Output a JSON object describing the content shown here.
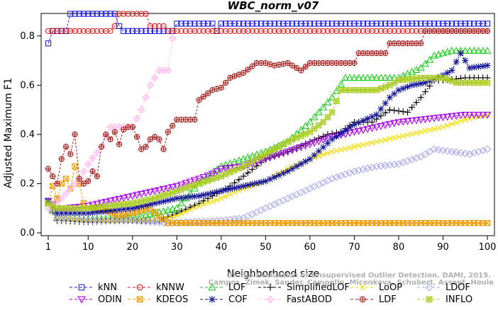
{
  "chart_data": {
    "type": "line",
    "title": "WBC_norm_v07",
    "xlabel": "Neighborhood size",
    "ylabel": "Adjusted Maximum F1",
    "xlim": [
      1,
      100
    ],
    "ylim": [
      0,
      0.88
    ],
    "xticks": [
      1,
      10,
      20,
      30,
      40,
      50,
      60,
      70,
      80,
      90,
      100
    ],
    "yticks": [
      0.0,
      0.2,
      0.4,
      0.6,
      0.8
    ],
    "ytick_labels": [
      "0.0",
      "0.2",
      "0.4",
      "0.6",
      "0.8"
    ],
    "grid": false,
    "legend_position": "bottom",
    "credit_lines": [
      "Campos, Zimek, Sander, Campello, Micenkova, Schubert, Assent, Houle",
      "On the Evaluation of Unsupervised Outlier Detection. DAMI, 2015."
    ],
    "series": [
      {
        "name": "kNN",
        "color": "#2222dd",
        "marker": "square",
        "points": [
          [
            1,
            0.77
          ],
          [
            2,
            0.82
          ],
          [
            5,
            0.82
          ],
          [
            6,
            0.89
          ],
          [
            16,
            0.89
          ],
          [
            17,
            0.84
          ],
          [
            18,
            0.82
          ],
          [
            29,
            0.82
          ],
          [
            30,
            0.85
          ],
          [
            38,
            0.85
          ],
          [
            39,
            0.82
          ],
          [
            40,
            0.85
          ],
          [
            100,
            0.85
          ]
        ]
      },
      {
        "name": "kNNW",
        "color": "#dd2222",
        "marker": "circle",
        "points": [
          [
            1,
            0.82
          ],
          [
            15,
            0.82
          ],
          [
            16,
            0.84
          ],
          [
            17,
            0.89
          ],
          [
            23,
            0.89
          ],
          [
            24,
            0.84
          ],
          [
            27,
            0.84
          ],
          [
            28,
            0.82
          ],
          [
            100,
            0.82
          ]
        ]
      },
      {
        "name": "LOF",
        "color": "#22cc22",
        "marker": "triangle-up",
        "points": [
          [
            1,
            0.12
          ],
          [
            3,
            0.06
          ],
          [
            10,
            0.055
          ],
          [
            20,
            0.06
          ],
          [
            30,
            0.1
          ],
          [
            35,
            0.2
          ],
          [
            40,
            0.27
          ],
          [
            45,
            0.3
          ],
          [
            50,
            0.33
          ],
          [
            55,
            0.37
          ],
          [
            60,
            0.45
          ],
          [
            65,
            0.55
          ],
          [
            68,
            0.63
          ],
          [
            80,
            0.63
          ],
          [
            85,
            0.67
          ],
          [
            88,
            0.72
          ],
          [
            92,
            0.74
          ],
          [
            100,
            0.74
          ]
        ]
      },
      {
        "name": "SimplifiedLOF",
        "color": "#000000",
        "marker": "plus",
        "points": [
          [
            1,
            0.12
          ],
          [
            3,
            0.05
          ],
          [
            10,
            0.045
          ],
          [
            20,
            0.05
          ],
          [
            26,
            0.05
          ],
          [
            30,
            0.08
          ],
          [
            35,
            0.12
          ],
          [
            40,
            0.17
          ],
          [
            42,
            0.19
          ],
          [
            45,
            0.23
          ],
          [
            50,
            0.3
          ],
          [
            55,
            0.33
          ],
          [
            60,
            0.37
          ],
          [
            64,
            0.4
          ],
          [
            67,
            0.41
          ],
          [
            70,
            0.45
          ],
          [
            74,
            0.45
          ],
          [
            78,
            0.5
          ],
          [
            82,
            0.49
          ],
          [
            85,
            0.55
          ],
          [
            88,
            0.62
          ],
          [
            90,
            0.62
          ],
          [
            95,
            0.63
          ],
          [
            100,
            0.63
          ]
        ]
      },
      {
        "name": "LoOP",
        "color": "#f2dd00",
        "marker": "x",
        "points": [
          [
            1,
            0.12
          ],
          [
            3,
            0.06
          ],
          [
            10,
            0.05
          ],
          [
            20,
            0.05
          ],
          [
            26,
            0.05
          ],
          [
            30,
            0.07
          ],
          [
            35,
            0.11
          ],
          [
            40,
            0.14
          ],
          [
            45,
            0.18
          ],
          [
            50,
            0.21
          ],
          [
            55,
            0.26
          ],
          [
            60,
            0.3
          ],
          [
            65,
            0.33
          ],
          [
            70,
            0.35
          ],
          [
            75,
            0.37
          ],
          [
            80,
            0.39
          ],
          [
            85,
            0.41
          ],
          [
            90,
            0.43
          ],
          [
            95,
            0.46
          ],
          [
            100,
            0.48
          ]
        ]
      },
      {
        "name": "LDOF",
        "color": "#aaaaee",
        "marker": "diamond",
        "points": [
          [
            1,
            0.12
          ],
          [
            3,
            0.06
          ],
          [
            10,
            0.05
          ],
          [
            20,
            0.05
          ],
          [
            28,
            0.04
          ],
          [
            40,
            0.05
          ],
          [
            45,
            0.06
          ],
          [
            50,
            0.1
          ],
          [
            55,
            0.14
          ],
          [
            60,
            0.18
          ],
          [
            65,
            0.22
          ],
          [
            70,
            0.25
          ],
          [
            75,
            0.27
          ],
          [
            80,
            0.28
          ],
          [
            85,
            0.31
          ],
          [
            88,
            0.34
          ],
          [
            92,
            0.33
          ],
          [
            96,
            0.32
          ],
          [
            100,
            0.34
          ]
        ]
      },
      {
        "name": "ODIN",
        "color": "#aa00ee",
        "marker": "triangle-down",
        "points": [
          [
            1,
            0.13
          ],
          [
            3,
            0.1
          ],
          [
            5,
            0.1
          ],
          [
            10,
            0.11
          ],
          [
            15,
            0.13
          ],
          [
            20,
            0.15
          ],
          [
            25,
            0.17
          ],
          [
            30,
            0.19
          ],
          [
            35,
            0.22
          ],
          [
            38,
            0.24
          ],
          [
            40,
            0.26
          ],
          [
            45,
            0.27
          ],
          [
            50,
            0.3
          ],
          [
            55,
            0.33
          ],
          [
            60,
            0.36
          ],
          [
            65,
            0.39
          ],
          [
            70,
            0.41
          ],
          [
            75,
            0.43
          ],
          [
            80,
            0.45
          ],
          [
            85,
            0.46
          ],
          [
            90,
            0.47
          ],
          [
            95,
            0.48
          ],
          [
            100,
            0.48
          ]
        ]
      },
      {
        "name": "KDEOS",
        "color": "#ee9900",
        "marker": "square-x",
        "points": [
          [
            1,
            0.12
          ],
          [
            2,
            0.19
          ],
          [
            3,
            0.14
          ],
          [
            4,
            0.2
          ],
          [
            5,
            0.22
          ],
          [
            6,
            0.18
          ],
          [
            7,
            0.27
          ],
          [
            8,
            0.2
          ],
          [
            9,
            0.12
          ],
          [
            10,
            0.1
          ],
          [
            14,
            0.09
          ],
          [
            17,
            0.07
          ],
          [
            20,
            0.08
          ],
          [
            24,
            0.1
          ],
          [
            28,
            0.04
          ],
          [
            40,
            0.04
          ],
          [
            60,
            0.04
          ],
          [
            100,
            0.04
          ]
        ]
      },
      {
        "name": "COF",
        "color": "#111199",
        "marker": "asterisk",
        "points": [
          [
            1,
            0.13
          ],
          [
            3,
            0.08
          ],
          [
            6,
            0.08
          ],
          [
            10,
            0.08
          ],
          [
            15,
            0.09
          ],
          [
            20,
            0.1
          ],
          [
            25,
            0.12
          ],
          [
            30,
            0.14
          ],
          [
            35,
            0.15
          ],
          [
            40,
            0.17
          ],
          [
            45,
            0.19
          ],
          [
            50,
            0.21
          ],
          [
            55,
            0.25
          ],
          [
            60,
            0.3
          ],
          [
            65,
            0.38
          ],
          [
            70,
            0.44
          ],
          [
            75,
            0.48
          ],
          [
            78,
            0.55
          ],
          [
            80,
            0.58
          ],
          [
            83,
            0.6
          ],
          [
            86,
            0.61
          ],
          [
            90,
            0.64
          ],
          [
            92,
            0.66
          ],
          [
            94,
            0.73
          ],
          [
            96,
            0.67
          ],
          [
            100,
            0.68
          ]
        ]
      },
      {
        "name": "FastABOD",
        "color": "#ffbbee",
        "marker": "diamond-plus",
        "points": [
          [
            1,
            0.1
          ],
          [
            3,
            0.12
          ],
          [
            5,
            0.16
          ],
          [
            8,
            0.22
          ],
          [
            10,
            0.28
          ],
          [
            13,
            0.35
          ],
          [
            15,
            0.43
          ],
          [
            20,
            0.43
          ],
          [
            22,
            0.5
          ],
          [
            24,
            0.6
          ],
          [
            26,
            0.66
          ],
          [
            28,
            0.66
          ],
          [
            29,
            0.79
          ]
        ]
      },
      {
        "name": "LDF",
        "color": "#aa2222",
        "marker": "circle-plus",
        "points": [
          [
            1,
            0.26
          ],
          [
            2,
            0.23
          ],
          [
            3,
            0.2
          ],
          [
            4,
            0.3
          ],
          [
            5,
            0.35
          ],
          [
            6,
            0.32
          ],
          [
            7,
            0.4
          ],
          [
            8,
            0.22
          ],
          [
            9,
            0.2
          ],
          [
            10,
            0.21
          ],
          [
            11,
            0.25
          ],
          [
            12,
            0.23
          ],
          [
            13,
            0.35
          ],
          [
            14,
            0.4
          ],
          [
            15,
            0.38
          ],
          [
            16,
            0.41
          ],
          [
            17,
            0.36
          ],
          [
            18,
            0.42
          ],
          [
            19,
            0.43
          ],
          [
            20,
            0.43
          ],
          [
            21,
            0.39
          ],
          [
            22,
            0.34
          ],
          [
            23,
            0.35
          ],
          [
            24,
            0.38
          ],
          [
            25,
            0.39
          ],
          [
            26,
            0.38
          ],
          [
            27,
            0.34
          ],
          [
            28,
            0.41
          ],
          [
            30,
            0.46
          ],
          [
            34,
            0.46
          ],
          [
            35,
            0.54
          ],
          [
            38,
            0.58
          ],
          [
            40,
            0.59
          ],
          [
            42,
            0.63
          ],
          [
            45,
            0.65
          ],
          [
            48,
            0.69
          ],
          [
            50,
            0.69
          ],
          [
            52,
            0.68
          ],
          [
            55,
            0.69
          ],
          [
            58,
            0.66
          ],
          [
            60,
            0.69
          ],
          [
            70,
            0.69
          ],
          [
            71,
            0.73
          ],
          [
            77,
            0.73
          ],
          [
            78,
            0.77
          ],
          [
            85,
            0.77
          ],
          [
            86,
            0.82
          ],
          [
            100,
            0.82
          ]
        ]
      },
      {
        "name": "INFLO",
        "color": "#aacc22",
        "marker": "star-box",
        "points": [
          [
            1,
            0.12
          ],
          [
            3,
            0.1
          ],
          [
            5,
            0.1
          ],
          [
            10,
            0.1
          ],
          [
            15,
            0.11
          ],
          [
            20,
            0.12
          ],
          [
            25,
            0.14
          ],
          [
            30,
            0.17
          ],
          [
            35,
            0.2
          ],
          [
            40,
            0.23
          ],
          [
            45,
            0.27
          ],
          [
            50,
            0.32
          ],
          [
            55,
            0.37
          ],
          [
            60,
            0.41
          ],
          [
            63,
            0.45
          ],
          [
            65,
            0.49
          ],
          [
            67,
            0.58
          ],
          [
            75,
            0.58
          ],
          [
            78,
            0.6
          ],
          [
            80,
            0.62
          ],
          [
            85,
            0.63
          ],
          [
            90,
            0.63
          ],
          [
            93,
            0.61
          ],
          [
            100,
            0.61
          ]
        ]
      }
    ]
  }
}
